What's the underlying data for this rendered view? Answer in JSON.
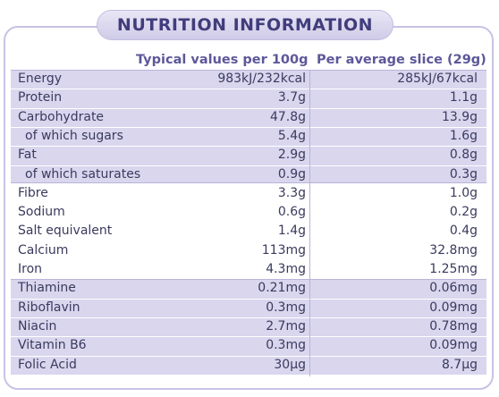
{
  "title": "NUTRITION INFORMATION",
  "headers": {
    "col1": "Typical values per 100g",
    "col2": "Per average slice (29g)"
  },
  "rows": [
    {
      "label": "Energy",
      "per100g": "983kJ/232kcal",
      "perSlice": "285kJ/67kcal",
      "sub": false,
      "shaded": true
    },
    {
      "label": "Protein",
      "per100g": "3.7g",
      "perSlice": "1.1g",
      "sub": false,
      "shaded": true
    },
    {
      "label": "Carbohydrate",
      "per100g": "47.8g",
      "perSlice": "13.9g",
      "sub": false,
      "shaded": true
    },
    {
      "label": "of which sugars",
      "per100g": "5.4g",
      "perSlice": "1.6g",
      "sub": true,
      "shaded": true
    },
    {
      "label": "Fat",
      "per100g": "2.9g",
      "perSlice": "0.8g",
      "sub": false,
      "shaded": true
    },
    {
      "label": "of which saturates",
      "per100g": "0.9g",
      "perSlice": "0.3g",
      "sub": true,
      "shaded": true
    },
    {
      "label": "Fibre",
      "per100g": "3.3g",
      "perSlice": "1.0g",
      "sub": false,
      "shaded": false
    },
    {
      "label": "Sodium",
      "per100g": "0.6g",
      "perSlice": "0.2g",
      "sub": false,
      "shaded": false
    },
    {
      "label": "Salt equivalent",
      "per100g": "1.4g",
      "perSlice": "0.4g",
      "sub": false,
      "shaded": false
    },
    {
      "label": "Calcium",
      "per100g": "113mg",
      "perSlice": "32.8mg",
      "sub": false,
      "shaded": false
    },
    {
      "label": "Iron",
      "per100g": "4.3mg",
      "perSlice": "1.25mg",
      "sub": false,
      "shaded": false
    },
    {
      "label": "Thiamine",
      "per100g": "0.21mg",
      "perSlice": "0.06mg",
      "sub": false,
      "shaded": true
    },
    {
      "label": "Riboflavin",
      "per100g": "0.3mg",
      "perSlice": "0.09mg",
      "sub": false,
      "shaded": true
    },
    {
      "label": "Niacin",
      "per100g": "2.7mg",
      "perSlice": "0.78mg",
      "sub": false,
      "shaded": true
    },
    {
      "label": "Vitamin B6",
      "per100g": "0.3mg",
      "perSlice": "0.09mg",
      "sub": false,
      "shaded": true
    },
    {
      "label": "Folic Acid",
      "per100g": "30µg",
      "perSlice": "8.7µg",
      "sub": false,
      "shaded": true
    }
  ],
  "colors": {
    "accent": "#413d7c",
    "band": "#d9d6ee",
    "border": "#c7c3e4"
  }
}
